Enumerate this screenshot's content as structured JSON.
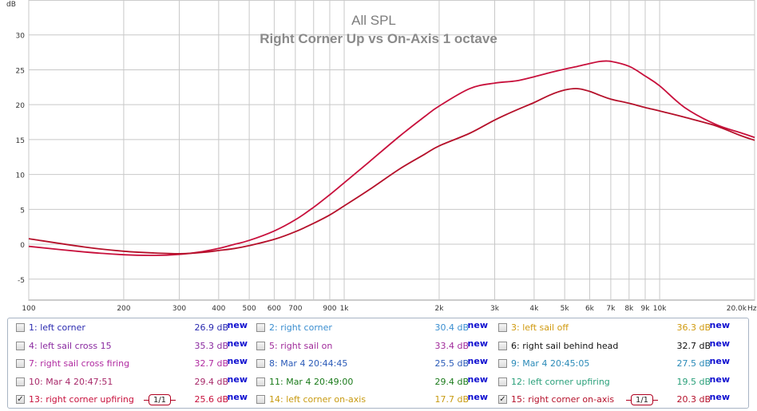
{
  "chart_data": {
    "type": "line",
    "title": "All SPL",
    "subtitle": "Right Corner Up vs On-Axis 1 octave",
    "xlabel": "Hz",
    "ylabel": "dB",
    "x_scale": "log",
    "xlim": [
      100,
      20000
    ],
    "ylim": [
      -8,
      35
    ],
    "grid": true,
    "x_ticks": [
      "100",
      "200",
      "300",
      "400",
      "500",
      "600",
      "700",
      "900",
      "1k",
      "2k",
      "3k",
      "4k",
      "5k",
      "6k",
      "7k",
      "8k",
      "9k",
      "10k",
      "20.0k"
    ],
    "y_ticks": [
      "-5",
      "0",
      "5",
      "10",
      "15",
      "20",
      "25",
      "30"
    ],
    "series": [
      {
        "name": "13: right corner upfiring",
        "color": "#c8103c",
        "x": [
          100,
          150,
          200,
          250,
          300,
          350,
          400,
          450,
          500,
          600,
          700,
          800,
          900,
          1000,
          1200,
          1500,
          1800,
          2000,
          2500,
          3000,
          3500,
          4000,
          4500,
          5000,
          5500,
          6000,
          6500,
          7000,
          8000,
          9000,
          10000,
          12000,
          15000,
          18000,
          20000
        ],
        "y": [
          -0.3,
          -1.1,
          -1.5,
          -1.6,
          -1.45,
          -1.1,
          -0.6,
          0.0,
          0.55,
          1.9,
          3.5,
          5.3,
          7.1,
          8.8,
          11.8,
          15.5,
          18.3,
          19.8,
          22.3,
          23.1,
          23.4,
          24.0,
          24.6,
          25.1,
          25.5,
          25.9,
          26.2,
          26.2,
          25.5,
          24.1,
          22.7,
          19.6,
          17.2,
          16.0,
          15.3
        ]
      },
      {
        "name": "15: right corner on-axis",
        "color": "#b5102a",
        "x": [
          100,
          150,
          200,
          250,
          300,
          350,
          400,
          450,
          500,
          600,
          700,
          800,
          900,
          1000,
          1200,
          1500,
          1800,
          2000,
          2500,
          3000,
          3500,
          4000,
          4500,
          5000,
          5500,
          6000,
          6500,
          7000,
          8000,
          9000,
          10000,
          12000,
          15000,
          18000,
          20000
        ],
        "y": [
          0.8,
          -0.4,
          -1.0,
          -1.25,
          -1.35,
          -1.2,
          -0.9,
          -0.6,
          -0.2,
          0.7,
          1.8,
          3.0,
          4.2,
          5.5,
          7.8,
          10.8,
          12.9,
          14.1,
          15.9,
          17.8,
          19.2,
          20.3,
          21.4,
          22.1,
          22.3,
          21.9,
          21.3,
          20.8,
          20.2,
          19.6,
          19.1,
          18.2,
          17.0,
          15.6,
          14.9
        ]
      }
    ]
  },
  "legend": {
    "rows": [
      [
        {
          "checked": false,
          "label": "1: left corner",
          "value": "26.9 dB",
          "new": "new",
          "color": "#2a2ab0",
          "vcolor": "#2a2ab0"
        },
        {
          "checked": false,
          "label": "2: right corner",
          "value": "30.4 dB",
          "new": "new",
          "color": "#3a8ed0",
          "vcolor": "#3a8ed0"
        },
        {
          "checked": false,
          "label": "3: left sail off",
          "value": "36.3 dB",
          "new": "new",
          "color": "#d09a10",
          "vcolor": "#d09a10"
        }
      ],
      [
        {
          "checked": false,
          "label": "4: left sail cross 15",
          "value": "35.3 dB",
          "new": "new",
          "color": "#8a2aa0",
          "vcolor": "#8a2aa0"
        },
        {
          "checked": false,
          "label": "5: right sail on",
          "value": "33.4 dB",
          "new": "new",
          "color": "#a02a9a",
          "vcolor": "#a02a9a"
        },
        {
          "checked": false,
          "label": "6: right sail behind head",
          "value": "32.7 dB",
          "new": "new",
          "color": "#111111",
          "vcolor": "#111111"
        }
      ],
      [
        {
          "checked": false,
          "label": "7: right sail cross firing",
          "value": "32.7 dB",
          "new": "new",
          "color": "#b02aa0",
          "vcolor": "#b02aa0"
        },
        {
          "checked": false,
          "label": "8: Mar 4 20:44:45",
          "value": "25.5 dB",
          "new": "new",
          "color": "#2a5ab8",
          "vcolor": "#2a5ab8"
        },
        {
          "checked": false,
          "label": "9: Mar 4 20:45:05",
          "value": "27.5 dB",
          "new": "new",
          "color": "#2a8ab8",
          "vcolor": "#2a8ab8"
        }
      ],
      [
        {
          "checked": false,
          "label": "10: Mar 4 20:47:51",
          "value": "29.4 dB",
          "new": "new",
          "color": "#a82a6a",
          "vcolor": "#a82a6a"
        },
        {
          "checked": false,
          "label": "11: Mar 4 20:49:00",
          "value": "29.4 dB",
          "new": "new",
          "color": "#1a7a1a",
          "vcolor": "#1a7a1a"
        },
        {
          "checked": false,
          "label": "12: left corner upfiring",
          "value": "19.5 dB",
          "new": "new",
          "color": "#2aa07a",
          "vcolor": "#2aa07a"
        }
      ],
      [
        {
          "checked": true,
          "label": "13: right corner upfiring",
          "value": "25.6 dB",
          "new": "new",
          "color": "#c8103c",
          "vcolor": "#c8103c",
          "smoothing": "1/1"
        },
        {
          "checked": false,
          "label": "14: left corner on-axis",
          "value": "17.7 dB",
          "new": "new",
          "color": "#c89a10",
          "vcolor": "#c89a10"
        },
        {
          "checked": true,
          "label": "15: right corner on-axis",
          "value": "20.3 dB",
          "new": "new",
          "color": "#b5102a",
          "vcolor": "#b5102a",
          "smoothing": "1/1"
        }
      ]
    ]
  }
}
